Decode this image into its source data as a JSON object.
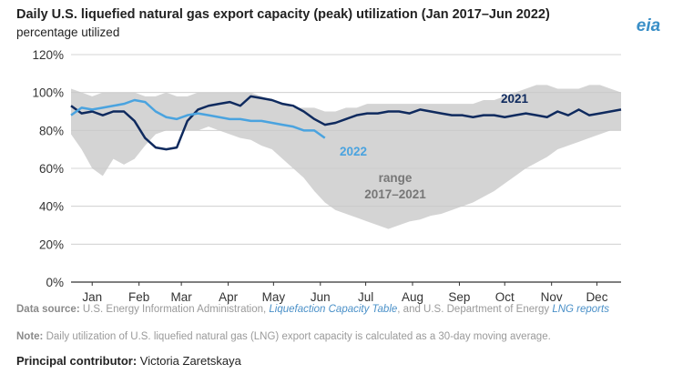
{
  "chart_data": {
    "type": "line",
    "title": "Daily U.S. liquefied natural gas export capacity (peak) utilization (Jan 2017–Jun 2022)",
    "subtitle": "percentage utilized",
    "logo": "eia",
    "x": [
      1,
      8,
      15,
      22,
      29,
      36,
      43,
      50,
      57,
      64,
      71,
      78,
      85,
      92,
      99,
      106,
      113,
      120,
      127,
      134,
      141,
      148,
      155,
      162,
      169,
      176,
      183,
      190,
      197,
      204,
      211,
      218,
      225,
      232,
      239,
      246,
      253,
      260,
      267,
      274,
      281,
      288,
      295,
      302,
      309,
      316,
      323,
      330,
      337,
      344,
      351,
      358,
      365
    ],
    "xlim": [
      1,
      365
    ],
    "xticks": [
      {
        "value": 15,
        "label": "Jan"
      },
      {
        "value": 46,
        "label": "Feb"
      },
      {
        "value": 74,
        "label": "Mar"
      },
      {
        "value": 105,
        "label": "Apr"
      },
      {
        "value": 135,
        "label": "May"
      },
      {
        "value": 166,
        "label": "Jun"
      },
      {
        "value": 196,
        "label": "Jul"
      },
      {
        "value": 227,
        "label": "Aug"
      },
      {
        "value": 258,
        "label": "Sep"
      },
      {
        "value": 288,
        "label": "Oct"
      },
      {
        "value": 319,
        "label": "Nov"
      },
      {
        "value": 349,
        "label": "Dec"
      }
    ],
    "ylim": [
      0,
      120
    ],
    "yticks": [
      {
        "value": 0,
        "label": "0%"
      },
      {
        "value": 20,
        "label": "20%"
      },
      {
        "value": 40,
        "label": "40%"
      },
      {
        "value": 60,
        "label": "60%"
      },
      {
        "value": 80,
        "label": "80%"
      },
      {
        "value": 100,
        "label": "100%"
      },
      {
        "value": 120,
        "label": "120%"
      }
    ],
    "grid": true,
    "band": {
      "label": [
        "range",
        "2017–2021"
      ],
      "color": "#d4d4d4",
      "low": [
        78,
        70,
        60,
        56,
        65,
        62,
        65,
        72,
        78,
        80,
        80,
        80,
        80,
        82,
        80,
        78,
        76,
        75,
        72,
        70,
        65,
        60,
        55,
        48,
        42,
        38,
        36,
        34,
        32,
        30,
        28,
        30,
        32,
        33,
        35,
        36,
        38,
        40,
        42,
        45,
        48,
        52,
        56,
        60,
        63,
        66,
        70,
        72,
        74,
        76,
        78,
        80,
        80
      ],
      "high": [
        102,
        100,
        98,
        100,
        100,
        100,
        100,
        98,
        98,
        100,
        98,
        98,
        100,
        100,
        100,
        100,
        100,
        100,
        98,
        96,
        94,
        92,
        92,
        92,
        90,
        90,
        92,
        92,
        94,
        94,
        94,
        94,
        94,
        94,
        94,
        94,
        94,
        94,
        94,
        96,
        96,
        98,
        100,
        102,
        104,
        104,
        102,
        102,
        102,
        104,
        104,
        102,
        100
      ]
    },
    "series": [
      {
        "name": "2021",
        "color": "#0f2a5e",
        "values": [
          93,
          89,
          90,
          88,
          90,
          90,
          85,
          76,
          71,
          70,
          71,
          85,
          91,
          93,
          94,
          95,
          93,
          98,
          97,
          96,
          94,
          93,
          90,
          86,
          83,
          84,
          86,
          88,
          89,
          89,
          90,
          90,
          89,
          91,
          90,
          89,
          88,
          88,
          87,
          88,
          88,
          87,
          88,
          89,
          88,
          87,
          90,
          88,
          91,
          88,
          89,
          90,
          91
        ]
      },
      {
        "name": "2022",
        "color": "#4aa3df",
        "values": [
          88,
          92,
          91,
          92,
          93,
          94,
          96,
          95,
          90,
          87,
          86,
          88,
          89,
          88,
          87,
          86,
          86,
          85,
          85,
          84,
          83,
          82,
          80,
          80,
          76,
          null,
          null,
          null,
          null,
          null,
          null,
          null,
          null,
          null,
          null,
          null,
          null,
          null,
          null,
          null,
          null,
          null,
          null,
          null,
          null,
          null,
          null,
          null,
          null,
          null,
          null,
          null,
          null
        ]
      }
    ]
  },
  "footer": {
    "source_label": "Data source:",
    "source_text1": " U.S. Energy Information Administration, ",
    "link1": "Liquefaction Capacity Table",
    "source_text2": ", and U.S. Department of Energy ",
    "link2": "LNG reports",
    "note_label": "Note:",
    "note_text": " Daily utilization of U.S. liquefied natural gas (LNG) export capacity is calculated as a 30-day moving average.",
    "contributor_label": "Principal contributor:",
    "contributor": " Victoria Zaretskaya"
  }
}
